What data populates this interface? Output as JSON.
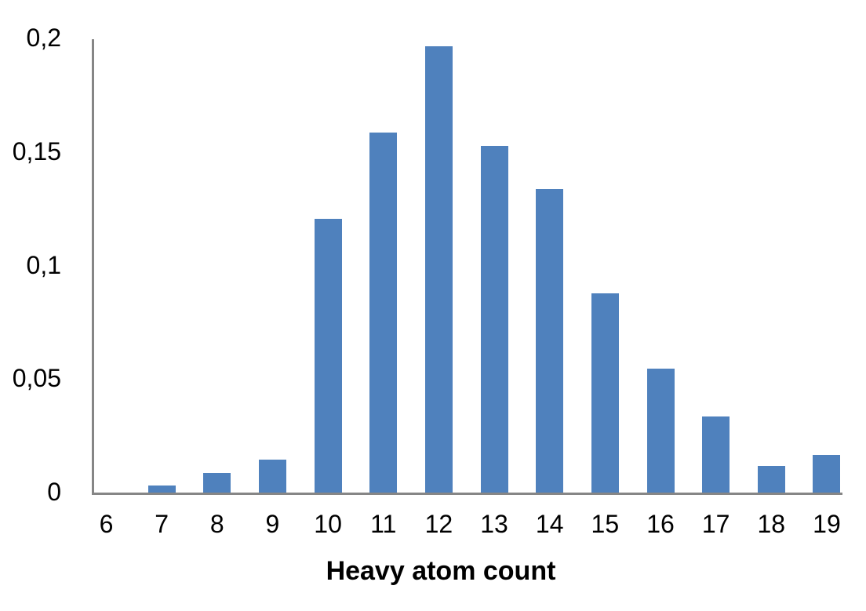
{
  "chart_data": {
    "type": "bar",
    "title": "",
    "xlabel": "Heavy atom count",
    "ylabel": "",
    "categories": [
      "6",
      "7",
      "8",
      "9",
      "10",
      "11",
      "12",
      "13",
      "14",
      "15",
      "16",
      "17",
      "18",
      "19"
    ],
    "values": [
      0.0,
      0.0035,
      0.009,
      0.015,
      0.121,
      0.159,
      0.197,
      0.153,
      0.134,
      0.088,
      0.055,
      0.034,
      0.012,
      0.017
    ],
    "ylim": [
      0,
      0.2
    ],
    "yticks": [
      0,
      0.05,
      0.1,
      0.15,
      0.2
    ],
    "ytick_labels": [
      "0",
      "0,05",
      "0,1",
      "0,15",
      "0,2"
    ],
    "grid": false,
    "legend": null,
    "colors": {
      "bar": "#4F81BD",
      "axis": "#868686"
    }
  }
}
